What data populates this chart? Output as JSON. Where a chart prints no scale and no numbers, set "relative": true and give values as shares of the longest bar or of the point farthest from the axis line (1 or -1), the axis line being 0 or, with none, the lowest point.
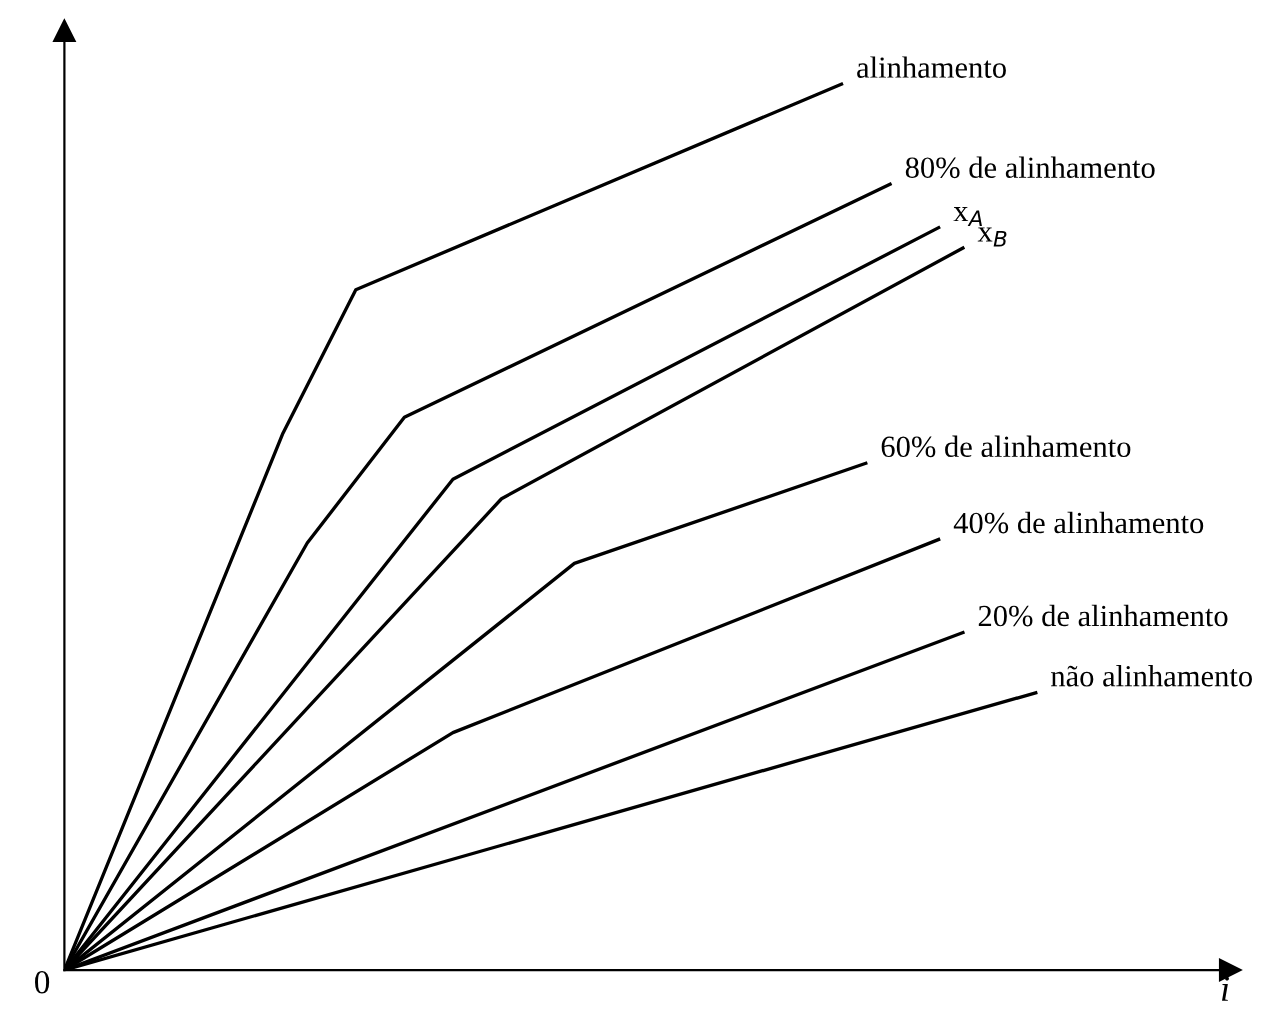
{
  "chart_data": {
    "type": "line",
    "relative": true,
    "xlabel": "i",
    "tick_labels": false,
    "legend": false,
    "marker": "none",
    "line_style": "solid",
    "annotations": [
      "0"
    ],
    "categories": [
      null,
      null,
      null,
      null,
      null,
      null,
      null,
      null,
      null,
      null,
      null,
      null,
      null,
      null,
      null,
      null,
      null,
      null,
      null,
      null,
      null,
      null,
      null,
      null,
      null,
      null,
      null,
      null,
      null,
      null,
      null,
      null,
      null,
      null,
      null,
      null,
      null,
      null,
      null,
      null,
      null,
      null,
      null,
      null,
      null,
      null,
      null,
      null,
      null
    ],
    "series": [
      {
        "name": "alinhamento",
        "color": "#000000",
        "values": [
          0,
          null,
          null,
          null,
          null,
          null,
          null,
          null,
          null,
          0.606,
          null,
          null,
          0.768,
          null,
          null,
          null,
          null,
          null,
          null,
          null,
          null,
          null,
          null,
          null,
          null,
          null,
          null,
          null,
          null,
          null,
          null,
          null,
          1.0,
          null,
          null,
          null,
          null,
          null,
          null,
          null,
          null,
          null,
          null,
          null,
          null,
          null,
          null,
          null,
          null
        ]
      },
      {
        "name": "80% de alinhamento",
        "color": "#000000",
        "values": [
          0,
          null,
          null,
          null,
          null,
          null,
          null,
          null,
          null,
          null,
          0.482,
          null,
          null,
          null,
          0.624,
          null,
          null,
          null,
          null,
          null,
          null,
          null,
          null,
          null,
          null,
          null,
          null,
          null,
          null,
          null,
          null,
          null,
          null,
          null,
          0.887,
          null,
          null,
          null,
          null,
          null,
          null,
          null,
          null,
          null,
          null,
          null,
          null,
          null,
          null
        ]
      },
      {
        "name": "x$_{A}$",
        "color": "#000000",
        "values": [
          0,
          null,
          null,
          null,
          null,
          null,
          null,
          null,
          null,
          null,
          null,
          null,
          null,
          null,
          null,
          null,
          0.554,
          null,
          null,
          null,
          null,
          null,
          null,
          null,
          null,
          null,
          null,
          null,
          null,
          null,
          null,
          null,
          null,
          null,
          null,
          null,
          0.838,
          null,
          null,
          null,
          null,
          null,
          null,
          null,
          null,
          null,
          null,
          null,
          null
        ]
      },
      {
        "name": "x$_{B}$",
        "color": "#000000",
        "values": [
          0,
          null,
          null,
          null,
          null,
          null,
          null,
          null,
          null,
          null,
          null,
          null,
          null,
          null,
          null,
          null,
          null,
          null,
          0.532,
          null,
          null,
          null,
          null,
          null,
          null,
          null,
          null,
          null,
          null,
          null,
          null,
          null,
          null,
          null,
          null,
          null,
          null,
          0.815,
          null,
          null,
          null,
          null,
          null,
          null,
          null,
          null,
          null,
          null,
          null
        ]
      },
      {
        "name": "60% de alinhamento",
        "color": "#000000",
        "values": [
          0,
          null,
          null,
          null,
          null,
          null,
          null,
          null,
          null,
          null,
          null,
          null,
          null,
          null,
          null,
          null,
          null,
          null,
          null,
          null,
          null,
          0.459,
          null,
          null,
          null,
          null,
          null,
          null,
          null,
          null,
          null,
          null,
          null,
          0.572,
          null,
          null,
          null,
          null,
          null,
          null,
          null,
          null,
          null,
          null,
          null,
          null,
          null,
          null,
          null
        ]
      },
      {
        "name": "40% de alinhamento",
        "color": "#000000",
        "values": [
          0,
          null,
          null,
          null,
          null,
          null,
          null,
          null,
          null,
          null,
          null,
          null,
          null,
          null,
          null,
          null,
          0.268,
          null,
          null,
          null,
          null,
          null,
          null,
          null,
          null,
          null,
          null,
          null,
          null,
          null,
          null,
          null,
          null,
          null,
          null,
          null,
          0.486,
          null,
          null,
          null,
          null,
          null,
          null,
          null,
          null,
          null,
          null,
          null,
          null
        ]
      },
      {
        "name": "20% de alinhamento",
        "color": "#000000",
        "values": [
          0,
          null,
          null,
          null,
          null,
          null,
          null,
          null,
          null,
          null,
          null,
          null,
          null,
          null,
          null,
          null,
          null,
          null,
          null,
          null,
          null,
          null,
          null,
          null,
          null,
          null,
          null,
          null,
          null,
          null,
          null,
          null,
          null,
          null,
          null,
          null,
          null,
          0.381,
          null,
          null,
          null,
          null,
          null,
          null,
          null,
          null,
          null,
          null,
          null
        ]
      },
      {
        "name": "não alinhamento",
        "color": "#000000",
        "values": [
          0,
          null,
          null,
          null,
          null,
          null,
          null,
          null,
          null,
          null,
          null,
          null,
          null,
          null,
          null,
          null,
          null,
          null,
          null,
          null,
          null,
          null,
          null,
          null,
          null,
          null,
          null,
          null,
          null,
          null,
          null,
          null,
          null,
          null,
          null,
          null,
          null,
          null,
          null,
          null,
          0.313,
          null,
          null,
          null,
          null,
          null,
          null,
          null,
          null
        ]
      }
    ]
  }
}
